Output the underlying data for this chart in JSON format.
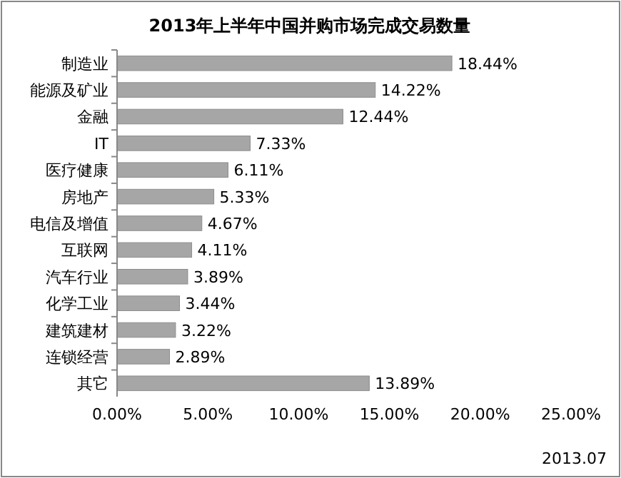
{
  "chart_data": {
    "type": "bar",
    "orientation": "horizontal",
    "title": "2013年上半年中国并购市场完成交易数量",
    "categories": [
      "制造业",
      "能源及矿业",
      "金融",
      "IT",
      "医疗健康",
      "房地产",
      "电信及增值",
      "互联网",
      "汽车行业",
      "化学工业",
      "建筑建材",
      "连锁经营",
      "其它"
    ],
    "values": [
      18.44,
      14.22,
      12.44,
      7.33,
      6.11,
      5.33,
      4.67,
      4.11,
      3.89,
      3.44,
      3.22,
      2.89,
      13.89
    ],
    "value_labels": [
      "18.44%",
      "14.22%",
      "12.44%",
      "7.33%",
      "6.11%",
      "5.33%",
      "4.67%",
      "4.11%",
      "3.89%",
      "3.44%",
      "3.22%",
      "2.89%",
      "13.89%"
    ],
    "color": "#a6a6a6",
    "xlim": [
      0,
      25
    ],
    "xticks": [
      {
        "value": 0,
        "label": "0.00%"
      },
      {
        "value": 5,
        "label": "5.00%"
      },
      {
        "value": 10,
        "label": "10.00%"
      },
      {
        "value": 15,
        "label": "15.00%"
      },
      {
        "value": 20,
        "label": "20.00%"
      },
      {
        "value": 25,
        "label": "25.00%"
      }
    ],
    "annotations": [
      "2013.07"
    ]
  }
}
